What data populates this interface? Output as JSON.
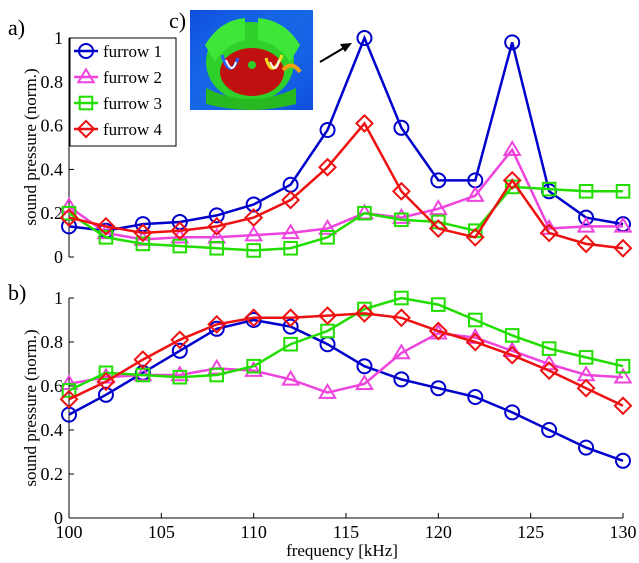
{
  "chart_data": [
    {
      "panel": "a)",
      "type": "line",
      "xlabel": "",
      "ylabel": "sound pressure (norm.)",
      "xlim": [
        100,
        130
      ],
      "ylim": [
        0,
        1
      ],
      "yticks": [
        "0",
        "0.2",
        "0.4",
        "0.6",
        "0.8",
        "1"
      ],
      "legend": "top-left",
      "grid": false,
      "x": [
        100,
        102,
        104,
        106,
        108,
        110,
        112,
        114,
        116,
        118,
        120,
        122,
        124,
        126,
        128,
        130
      ],
      "series": [
        {
          "name": "furrow 1",
          "color": "#0000cc",
          "marker": "circle",
          "values": [
            0.14,
            0.12,
            0.15,
            0.16,
            0.19,
            0.24,
            0.33,
            0.58,
            1.0,
            0.59,
            0.35,
            0.35,
            0.98,
            0.3,
            0.18,
            0.15
          ]
        },
        {
          "name": "furrow 2",
          "color": "#ee44dd",
          "marker": "triangle",
          "values": [
            0.23,
            0.11,
            0.08,
            0.09,
            0.09,
            0.1,
            0.11,
            0.13,
            0.2,
            0.18,
            0.22,
            0.28,
            0.49,
            0.13,
            0.14,
            0.14
          ]
        },
        {
          "name": "furrow 3",
          "color": "#22dd00",
          "marker": "square",
          "values": [
            0.2,
            0.09,
            0.06,
            0.05,
            0.04,
            0.03,
            0.04,
            0.09,
            0.2,
            0.17,
            0.16,
            0.12,
            0.32,
            0.31,
            0.3,
            0.3
          ]
        },
        {
          "name": "furrow 4",
          "color": "#ee1111",
          "marker": "diamond",
          "values": [
            0.18,
            0.14,
            0.11,
            0.12,
            0.14,
            0.18,
            0.26,
            0.41,
            0.61,
            0.3,
            0.13,
            0.09,
            0.35,
            0.11,
            0.06,
            0.04
          ]
        }
      ],
      "inset": {
        "label": "c)"
      }
    },
    {
      "panel": "b)",
      "type": "line",
      "xlabel": "frequency [kHz]",
      "ylabel": "sound pressure (norm.)",
      "xlim": [
        100,
        130
      ],
      "ylim": [
        0,
        1
      ],
      "xticks": [
        "100",
        "105",
        "110",
        "115",
        "120",
        "125",
        "130"
      ],
      "yticks": [
        "0",
        "0.2",
        "0.4",
        "0.6",
        "0.8",
        "1"
      ],
      "grid": false,
      "x": [
        100,
        102,
        104,
        106,
        108,
        110,
        112,
        114,
        116,
        118,
        120,
        122,
        124,
        126,
        128,
        130
      ],
      "series": [
        {
          "name": "furrow 1",
          "color": "#0000cc",
          "marker": "circle",
          "values": [
            0.47,
            0.56,
            0.66,
            0.76,
            0.86,
            0.9,
            0.87,
            0.79,
            0.69,
            0.63,
            0.59,
            0.55,
            0.48,
            0.4,
            0.32,
            0.26
          ]
        },
        {
          "name": "furrow 2",
          "color": "#ee44dd",
          "marker": "triangle",
          "values": [
            0.61,
            0.64,
            0.65,
            0.65,
            0.68,
            0.67,
            0.63,
            0.57,
            0.61,
            0.75,
            0.84,
            0.82,
            0.76,
            0.7,
            0.65,
            0.64
          ]
        },
        {
          "name": "furrow 3",
          "color": "#22dd00",
          "marker": "square",
          "values": [
            0.58,
            0.66,
            0.65,
            0.64,
            0.65,
            0.69,
            0.79,
            0.85,
            0.95,
            1.0,
            0.97,
            0.9,
            0.83,
            0.77,
            0.73,
            0.69
          ]
        },
        {
          "name": "furrow 4",
          "color": "#ee1111",
          "marker": "diamond",
          "values": [
            0.54,
            0.62,
            0.72,
            0.81,
            0.88,
            0.91,
            0.91,
            0.92,
            0.93,
            0.91,
            0.85,
            0.8,
            0.74,
            0.67,
            0.59,
            0.51
          ]
        }
      ]
    }
  ]
}
